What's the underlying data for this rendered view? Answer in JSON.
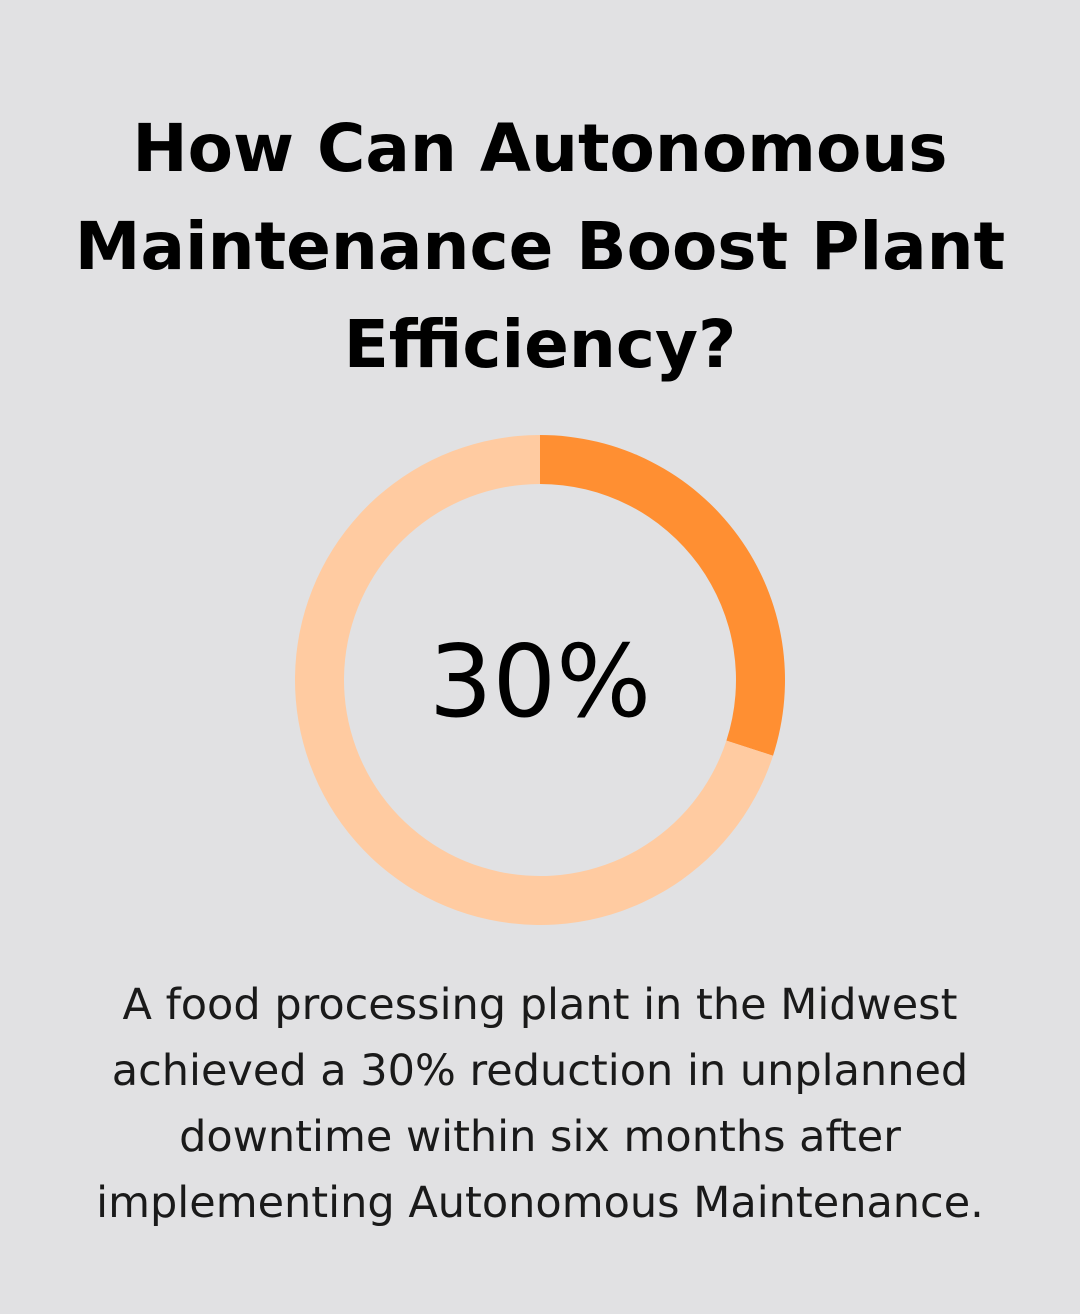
{
  "title": "How Can Autonomous Maintenance Boost Plant Efficiency?",
  "caption": "A food processing plant in the Midwest achieved a 30% reduction in unplanned downtime within six months after implementing Autonomous Maintenance.",
  "chart_data": {
    "type": "pie",
    "variant": "donut",
    "center_label": "30%",
    "values": [
      30,
      70
    ],
    "colors": [
      "#ff8f32",
      "#ffcba1"
    ]
  },
  "colors": {
    "background": "#e1e1e3",
    "accent": "#ff8f32",
    "track": "#ffcba1"
  }
}
